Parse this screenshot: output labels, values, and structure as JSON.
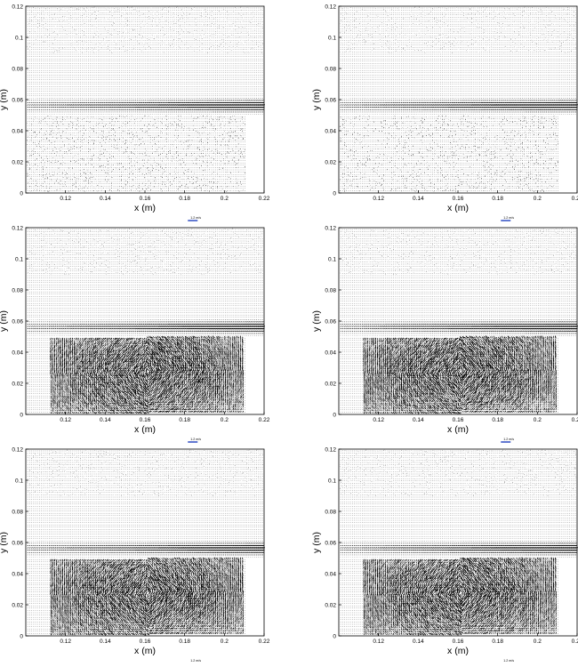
{
  "chart_data": [
    {
      "type": "quiver",
      "panel": "top-left",
      "xlabel": "x (m)",
      "ylabel": "y (m)",
      "xlim": [
        0.1,
        0.22
      ],
      "ylim": [
        0,
        0.12
      ],
      "x_ticks": [
        "0.12",
        "0.14",
        "0.16",
        "0.18",
        "0.2",
        "0.22"
      ],
      "y_ticks": [
        "0",
        "0.02",
        "0.04",
        "0.06",
        "0.08",
        "0.1",
        "0.12"
      ],
      "scale_label": "1.2 m/s",
      "step_x": 0.208,
      "step_y": 0.085,
      "cavity_filled": false
    },
    {
      "type": "quiver",
      "panel": "top-right",
      "xlabel": "x (m)",
      "ylabel": "y (m)",
      "xlim": [
        0.1,
        0.22
      ],
      "ylim": [
        0,
        0.12
      ],
      "x_ticks": [
        "0.12",
        "0.14",
        "0.16",
        "0.18",
        "0.2",
        "0.22"
      ],
      "y_ticks": [
        "0",
        "0.02",
        "0.04",
        "0.06",
        "0.08",
        "0.1",
        "0.12"
      ],
      "scale_label": "1.2 m/s",
      "step_x": 0.208,
      "step_y": 0.085,
      "cavity_filled": false
    },
    {
      "type": "quiver",
      "panel": "middle-left",
      "xlabel": "x (m)",
      "ylabel": "y (m)",
      "xlim": [
        0.1,
        0.22
      ],
      "ylim": [
        0,
        0.12
      ],
      "x_ticks": [
        "0.12",
        "0.14",
        "0.16",
        "0.18",
        "0.2",
        "0.22"
      ],
      "y_ticks": [
        "0",
        "0.02",
        "0.04",
        "0.06",
        "0.08",
        "0.1",
        "0.12"
      ],
      "scale_label": "1.2 m/s",
      "step_x": 0.208,
      "step_y": 0.085,
      "cavity_filled": true
    },
    {
      "type": "quiver",
      "panel": "middle-right",
      "xlabel": "x (m)",
      "ylabel": "y (m)",
      "xlim": [
        0.1,
        0.22
      ],
      "ylim": [
        0,
        0.12
      ],
      "x_ticks": [
        "0.12",
        "0.14",
        "0.16",
        "0.18",
        "0.2",
        "0.22"
      ],
      "y_ticks": [
        "0",
        "0.02",
        "0.04",
        "0.06",
        "0.08",
        "0.1",
        "0.12"
      ],
      "scale_label": "1.2 m/s",
      "step_x": 0.208,
      "step_y": 0.085,
      "cavity_filled": true
    },
    {
      "type": "quiver",
      "panel": "bottom-left",
      "xlabel": "x (m)",
      "ylabel": "y (m)",
      "xlim": [
        0.1,
        0.22
      ],
      "ylim": [
        0,
        0.12
      ],
      "x_ticks": [
        "0.12",
        "0.14",
        "0.16",
        "0.18",
        "0.2",
        "0.22"
      ],
      "y_ticks": [
        "0",
        "0.02",
        "0.04",
        "0.06",
        "0.08",
        "0.1",
        "0.12"
      ],
      "scale_label": "1.2 m/s",
      "step_x": 0.208,
      "step_y": 0.085,
      "cavity_filled": true
    },
    {
      "type": "quiver",
      "panel": "bottom-right",
      "xlabel": "x (m)",
      "ylabel": "y (m)",
      "xlim": [
        0.1,
        0.22
      ],
      "ylim": [
        0,
        0.12
      ],
      "x_ticks": [
        "0.12",
        "0.14",
        "0.16",
        "0.18",
        "0.2",
        "0.22"
      ],
      "y_ticks": [
        "0",
        "0.02",
        "0.04",
        "0.06",
        "0.08",
        "0.1",
        "0.12"
      ],
      "scale_label": "1.2 m/s",
      "step_x": 0.208,
      "step_y": 0.085,
      "cavity_filled": true
    }
  ],
  "colors": {
    "vectors": "#000000",
    "scale_arrow": "#1f3fbf",
    "axes": "#000000"
  }
}
